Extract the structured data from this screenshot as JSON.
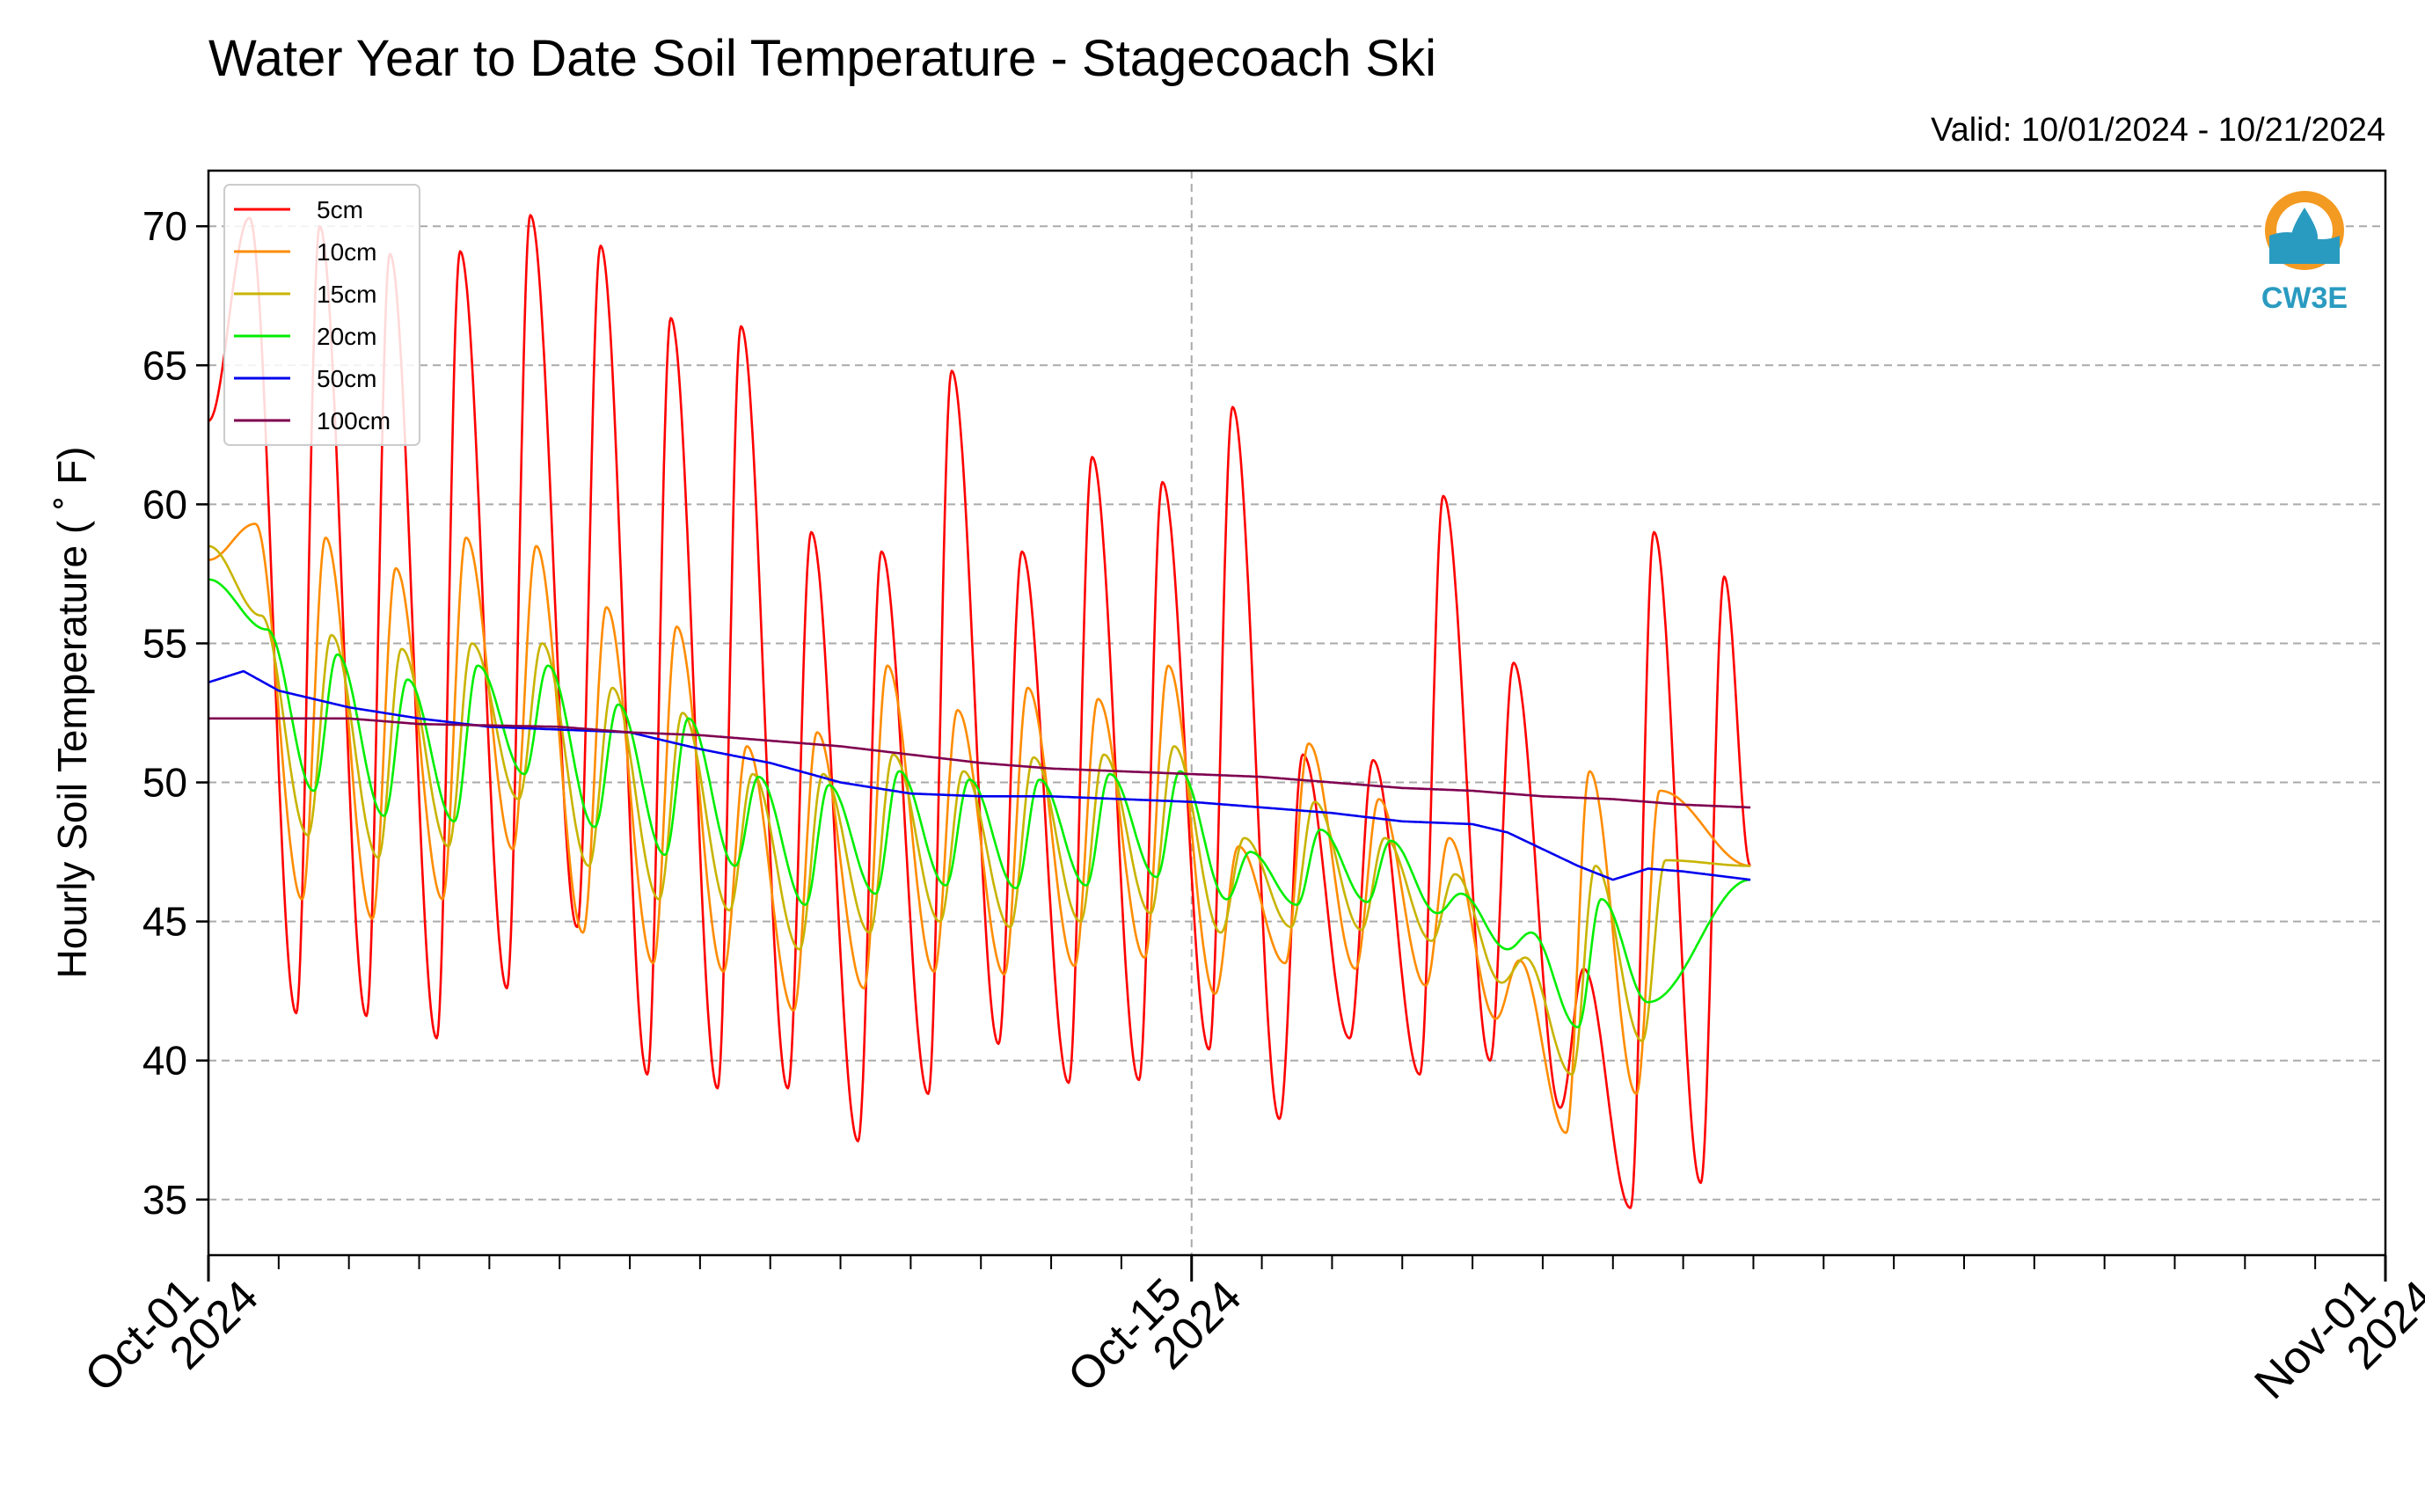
{
  "chart_data": {
    "type": "line",
    "title": "Water Year to Date Soil Temperature - Stagecoach Ski",
    "valid_text": "Valid: 10/01/2024 - 10/21/2024",
    "ylabel": "Hourly Soil Temperature ( ˚ F)",
    "xlabel": "",
    "ylim": [
      33,
      72
    ],
    "yticks": [
      35,
      40,
      45,
      50,
      55,
      60,
      65,
      70
    ],
    "xlim": [
      "2024-10-01",
      "2024-11-01"
    ],
    "xticks": [
      {
        "date": "2024-10-01",
        "line1": "Oct-01",
        "line2": "2024"
      },
      {
        "date": "2024-10-15",
        "line1": "Oct-15",
        "line2": "2024"
      },
      {
        "date": "2024-11-01",
        "line1": "Nov-01",
        "line2": "2024"
      }
    ],
    "grid": true,
    "legend_position": "top-left",
    "logo": "CW3E",
    "series": [
      {
        "name": "5cm",
        "color": "#ff0000",
        "min_time": "14:00",
        "points": [
          [
            "2024-10-01 00:00",
            63.0
          ],
          [
            "2024-10-01 14:00",
            70.3
          ],
          [
            "2024-10-02 06:00",
            41.7
          ],
          [
            "2024-10-02 14:00",
            70.0
          ],
          [
            "2024-10-03 06:00",
            41.6
          ],
          [
            "2024-10-03 14:00",
            69.0
          ],
          [
            "2024-10-04 06:00",
            40.8
          ],
          [
            "2024-10-04 14:00",
            69.1
          ],
          [
            "2024-10-05 06:00",
            42.6
          ],
          [
            "2024-10-05 14:00",
            70.4
          ],
          [
            "2024-10-06 06:00",
            44.8
          ],
          [
            "2024-10-06 14:00",
            69.3
          ],
          [
            "2024-10-07 06:00",
            39.5
          ],
          [
            "2024-10-07 14:00",
            66.7
          ],
          [
            "2024-10-08 06:00",
            39.0
          ],
          [
            "2024-10-08 14:00",
            66.4
          ],
          [
            "2024-10-09 06:00",
            39.0
          ],
          [
            "2024-10-09 14:00",
            59.0
          ],
          [
            "2024-10-10 06:00",
            37.1
          ],
          [
            "2024-10-10 14:00",
            58.3
          ],
          [
            "2024-10-11 06:00",
            38.8
          ],
          [
            "2024-10-11 14:00",
            64.8
          ],
          [
            "2024-10-12 06:00",
            40.6
          ],
          [
            "2024-10-12 14:00",
            58.3
          ],
          [
            "2024-10-13 06:00",
            39.2
          ],
          [
            "2024-10-13 14:00",
            61.7
          ],
          [
            "2024-10-14 06:00",
            39.3
          ],
          [
            "2024-10-14 14:00",
            60.8
          ],
          [
            "2024-10-15 06:00",
            40.4
          ],
          [
            "2024-10-15 14:00",
            63.5
          ],
          [
            "2024-10-16 06:00",
            37.9
          ],
          [
            "2024-10-16 14:00",
            51.0
          ],
          [
            "2024-10-17 06:00",
            40.8
          ],
          [
            "2024-10-17 14:00",
            50.8
          ],
          [
            "2024-10-18 06:00",
            39.5
          ],
          [
            "2024-10-18 14:00",
            60.3
          ],
          [
            "2024-10-19 06:00",
            40.0
          ],
          [
            "2024-10-19 14:00",
            54.3
          ],
          [
            "2024-10-20 06:00",
            38.3
          ],
          [
            "2024-10-20 14:00",
            43.3
          ],
          [
            "2024-10-21 06:00",
            34.7
          ],
          [
            "2024-10-21 14:00",
            59.0
          ],
          [
            "2024-10-22 06:00",
            35.6
          ],
          [
            "2024-10-22 14:00",
            57.4
          ],
          [
            "2024-10-22 23:00",
            47.0
          ]
        ]
      },
      {
        "name": "10cm",
        "color": "#ff8c00",
        "min_time": "14:00",
        "points": [
          [
            "2024-10-01 00:00",
            58.0
          ],
          [
            "2024-10-01 16:00",
            59.3
          ],
          [
            "2024-10-02 08:00",
            45.8
          ],
          [
            "2024-10-02 16:00",
            58.8
          ],
          [
            "2024-10-03 08:00",
            45.1
          ],
          [
            "2024-10-03 16:00",
            57.7
          ],
          [
            "2024-10-04 08:00",
            45.8
          ],
          [
            "2024-10-04 16:00",
            58.8
          ],
          [
            "2024-10-05 08:00",
            47.6
          ],
          [
            "2024-10-05 16:00",
            58.5
          ],
          [
            "2024-10-06 08:00",
            44.6
          ],
          [
            "2024-10-06 16:00",
            56.3
          ],
          [
            "2024-10-07 08:00",
            43.5
          ],
          [
            "2024-10-07 16:00",
            55.6
          ],
          [
            "2024-10-08 08:00",
            43.2
          ],
          [
            "2024-10-08 16:00",
            51.3
          ],
          [
            "2024-10-09 08:00",
            41.8
          ],
          [
            "2024-10-09 16:00",
            51.8
          ],
          [
            "2024-10-10 08:00",
            42.6
          ],
          [
            "2024-10-10 16:00",
            54.2
          ],
          [
            "2024-10-11 08:00",
            43.2
          ],
          [
            "2024-10-11 16:00",
            52.6
          ],
          [
            "2024-10-12 08:00",
            43.1
          ],
          [
            "2024-10-12 16:00",
            53.4
          ],
          [
            "2024-10-13 08:00",
            43.4
          ],
          [
            "2024-10-13 16:00",
            53.0
          ],
          [
            "2024-10-14 08:00",
            43.7
          ],
          [
            "2024-10-14 16:00",
            54.2
          ],
          [
            "2024-10-15 08:00",
            42.4
          ],
          [
            "2024-10-15 16:00",
            47.7
          ],
          [
            "2024-10-16 08:00",
            43.5
          ],
          [
            "2024-10-16 16:00",
            51.4
          ],
          [
            "2024-10-17 08:00",
            43.3
          ],
          [
            "2024-10-17 16:00",
            49.4
          ],
          [
            "2024-10-18 08:00",
            42.7
          ],
          [
            "2024-10-18 16:00",
            48.0
          ],
          [
            "2024-10-19 08:00",
            41.5
          ],
          [
            "2024-10-19 16:00",
            43.6
          ],
          [
            "2024-10-20 08:00",
            37.4
          ],
          [
            "2024-10-20 16:00",
            50.4
          ],
          [
            "2024-10-21 08:00",
            38.8
          ],
          [
            "2024-10-21 16:00",
            49.7
          ],
          [
            "2024-10-22 23:00",
            47.0
          ]
        ]
      },
      {
        "name": "15cm",
        "color": "#c8b400",
        "min_time": "14:00",
        "points": [
          [
            "2024-10-01 00:00",
            58.5
          ],
          [
            "2024-10-01 18:00",
            56.0
          ],
          [
            "2024-10-02 10:00",
            48.1
          ],
          [
            "2024-10-02 18:00",
            55.3
          ],
          [
            "2024-10-03 10:00",
            47.3
          ],
          [
            "2024-10-03 18:00",
            54.8
          ],
          [
            "2024-10-04 10:00",
            47.7
          ],
          [
            "2024-10-04 18:00",
            55.0
          ],
          [
            "2024-10-05 10:00",
            49.4
          ],
          [
            "2024-10-05 18:00",
            55.0
          ],
          [
            "2024-10-06 10:00",
            47.0
          ],
          [
            "2024-10-06 18:00",
            53.4
          ],
          [
            "2024-10-07 10:00",
            45.8
          ],
          [
            "2024-10-07 18:00",
            52.5
          ],
          [
            "2024-10-08 10:00",
            45.4
          ],
          [
            "2024-10-08 18:00",
            50.3
          ],
          [
            "2024-10-09 10:00",
            44.0
          ],
          [
            "2024-10-09 18:00",
            50.3
          ],
          [
            "2024-10-10 10:00",
            44.6
          ],
          [
            "2024-10-10 18:00",
            51.0
          ],
          [
            "2024-10-11 10:00",
            45.0
          ],
          [
            "2024-10-11 18:00",
            50.4
          ],
          [
            "2024-10-12 10:00",
            44.8
          ],
          [
            "2024-10-12 18:00",
            50.9
          ],
          [
            "2024-10-13 10:00",
            45.0
          ],
          [
            "2024-10-13 18:00",
            51.0
          ],
          [
            "2024-10-14 10:00",
            45.3
          ],
          [
            "2024-10-14 18:00",
            51.3
          ],
          [
            "2024-10-15 10:00",
            44.6
          ],
          [
            "2024-10-15 18:00",
            48.0
          ],
          [
            "2024-10-16 10:00",
            44.8
          ],
          [
            "2024-10-16 18:00",
            49.3
          ],
          [
            "2024-10-17 10:00",
            44.7
          ],
          [
            "2024-10-17 18:00",
            48.0
          ],
          [
            "2024-10-18 10:00",
            44.3
          ],
          [
            "2024-10-18 18:00",
            46.7
          ],
          [
            "2024-10-19 10:00",
            42.8
          ],
          [
            "2024-10-19 18:00",
            43.7
          ],
          [
            "2024-10-20 10:00",
            39.5
          ],
          [
            "2024-10-20 18:00",
            47.0
          ],
          [
            "2024-10-21 10:00",
            40.7
          ],
          [
            "2024-10-21 18:00",
            47.2
          ],
          [
            "2024-10-22 23:00",
            47.0
          ]
        ]
      },
      {
        "name": "20cm",
        "color": "#00ee00",
        "min_time": "14:00",
        "points": [
          [
            "2024-10-01 00:00",
            57.3
          ],
          [
            "2024-10-01 20:00",
            55.5
          ],
          [
            "2024-10-02 12:00",
            49.7
          ],
          [
            "2024-10-02 20:00",
            54.6
          ],
          [
            "2024-10-03 12:00",
            48.8
          ],
          [
            "2024-10-03 20:00",
            53.7
          ],
          [
            "2024-10-04 12:00",
            48.6
          ],
          [
            "2024-10-04 20:00",
            54.2
          ],
          [
            "2024-10-05 12:00",
            50.3
          ],
          [
            "2024-10-05 20:00",
            54.2
          ],
          [
            "2024-10-06 12:00",
            48.4
          ],
          [
            "2024-10-06 20:00",
            52.8
          ],
          [
            "2024-10-07 12:00",
            47.4
          ],
          [
            "2024-10-07 20:00",
            52.3
          ],
          [
            "2024-10-08 12:00",
            47.0
          ],
          [
            "2024-10-08 20:00",
            50.2
          ],
          [
            "2024-10-09 12:00",
            45.6
          ],
          [
            "2024-10-09 20:00",
            49.9
          ],
          [
            "2024-10-10 12:00",
            46.0
          ],
          [
            "2024-10-10 20:00",
            50.4
          ],
          [
            "2024-10-11 12:00",
            46.3
          ],
          [
            "2024-10-11 20:00",
            50.1
          ],
          [
            "2024-10-12 12:00",
            46.2
          ],
          [
            "2024-10-12 20:00",
            50.1
          ],
          [
            "2024-10-13 12:00",
            46.3
          ],
          [
            "2024-10-13 20:00",
            50.3
          ],
          [
            "2024-10-14 12:00",
            46.6
          ],
          [
            "2024-10-14 20:00",
            50.4
          ],
          [
            "2024-10-15 12:00",
            45.8
          ],
          [
            "2024-10-15 20:00",
            47.5
          ],
          [
            "2024-10-16 12:00",
            45.6
          ],
          [
            "2024-10-16 20:00",
            48.3
          ],
          [
            "2024-10-17 12:00",
            45.7
          ],
          [
            "2024-10-17 20:00",
            47.9
          ],
          [
            "2024-10-18 12:00",
            45.3
          ],
          [
            "2024-10-18 20:00",
            46.0
          ],
          [
            "2024-10-19 12:00",
            44.0
          ],
          [
            "2024-10-19 20:00",
            44.6
          ],
          [
            "2024-10-20 12:00",
            41.2
          ],
          [
            "2024-10-20 20:00",
            45.8
          ],
          [
            "2024-10-21 12:00",
            42.1
          ],
          [
            "2024-10-22 23:00",
            46.5
          ]
        ]
      },
      {
        "name": "50cm",
        "color": "#0000ee",
        "points": [
          [
            "2024-10-01 00:00",
            53.6
          ],
          [
            "2024-10-01 12:00",
            54.0
          ],
          [
            "2024-10-02 00:00",
            53.3
          ],
          [
            "2024-10-02 12:00",
            53.0
          ],
          [
            "2024-10-03 00:00",
            52.7
          ],
          [
            "2024-10-03 12:00",
            52.5
          ],
          [
            "2024-10-04 00:00",
            52.3
          ],
          [
            "2024-10-05 00:00",
            52.0
          ],
          [
            "2024-10-06 00:00",
            51.9
          ],
          [
            "2024-10-07 00:00",
            51.8
          ],
          [
            "2024-10-08 00:00",
            51.2
          ],
          [
            "2024-10-09 00:00",
            50.7
          ],
          [
            "2024-10-10 00:00",
            50.0
          ],
          [
            "2024-10-11 00:00",
            49.6
          ],
          [
            "2024-10-12 00:00",
            49.5
          ],
          [
            "2024-10-13 00:00",
            49.5
          ],
          [
            "2024-10-14 00:00",
            49.4
          ],
          [
            "2024-10-15 00:00",
            49.3
          ],
          [
            "2024-10-16 00:00",
            49.1
          ],
          [
            "2024-10-17 00:00",
            48.9
          ],
          [
            "2024-10-18 00:00",
            48.6
          ],
          [
            "2024-10-19 00:00",
            48.5
          ],
          [
            "2024-10-19 12:00",
            48.2
          ],
          [
            "2024-10-20 00:00",
            47.6
          ],
          [
            "2024-10-20 12:00",
            47.0
          ],
          [
            "2024-10-21 00:00",
            46.5
          ],
          [
            "2024-10-21 12:00",
            46.9
          ],
          [
            "2024-10-22 00:00",
            46.8
          ],
          [
            "2024-10-22 23:00",
            46.5
          ]
        ]
      },
      {
        "name": "100cm",
        "color": "#7f0050",
        "points": [
          [
            "2024-10-01 00:00",
            52.3
          ],
          [
            "2024-10-03 00:00",
            52.3
          ],
          [
            "2024-10-04 00:00",
            52.1
          ],
          [
            "2024-10-06 00:00",
            52.0
          ],
          [
            "2024-10-07 00:00",
            51.8
          ],
          [
            "2024-10-08 00:00",
            51.7
          ],
          [
            "2024-10-09 00:00",
            51.5
          ],
          [
            "2024-10-10 00:00",
            51.3
          ],
          [
            "2024-10-11 00:00",
            51.0
          ],
          [
            "2024-10-12 00:00",
            50.7
          ],
          [
            "2024-10-13 00:00",
            50.5
          ],
          [
            "2024-10-14 00:00",
            50.4
          ],
          [
            "2024-10-15 00:00",
            50.3
          ],
          [
            "2024-10-16 00:00",
            50.2
          ],
          [
            "2024-10-17 00:00",
            50.0
          ],
          [
            "2024-10-18 00:00",
            49.8
          ],
          [
            "2024-10-19 00:00",
            49.7
          ],
          [
            "2024-10-20 00:00",
            49.5
          ],
          [
            "2024-10-21 00:00",
            49.4
          ],
          [
            "2024-10-22 00:00",
            49.2
          ],
          [
            "2024-10-22 23:00",
            49.1
          ]
        ]
      }
    ]
  }
}
